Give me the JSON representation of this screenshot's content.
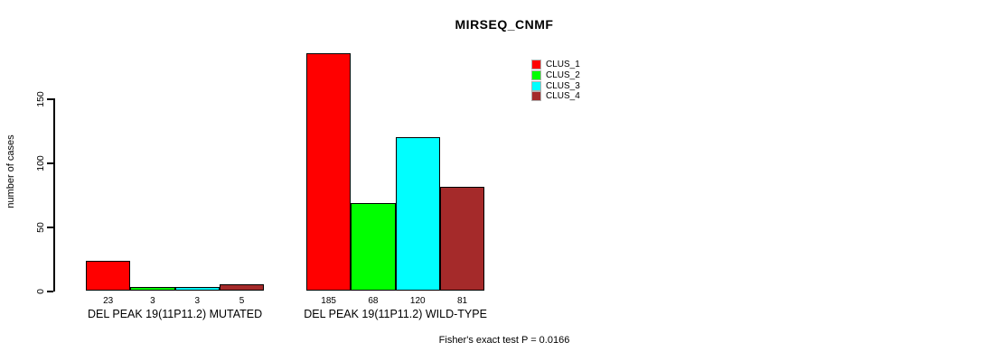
{
  "title": "MIRSEQ_CNMF",
  "annotation": "Fisher's exact test P = 0.0166",
  "chart_data": {
    "type": "bar",
    "title": "MIRSEQ_CNMF",
    "xlabel": "",
    "ylabel": "number of cases",
    "ylim": [
      0,
      190
    ],
    "yticks": [
      0,
      50,
      100,
      150
    ],
    "grid": false,
    "legend_position": "top-right",
    "show_values_under_bars": true,
    "categories": [
      "DEL PEAK 19(11P11.2) MUTATED",
      "DEL PEAK 19(11P11.2) WILD-TYPE"
    ],
    "series": [
      {
        "name": "CLUS_1",
        "color": "#ff0000",
        "values": [
          23,
          185
        ]
      },
      {
        "name": "CLUS_2",
        "color": "#00ff00",
        "values": [
          3,
          68
        ]
      },
      {
        "name": "CLUS_3",
        "color": "#00ffff",
        "values": [
          3,
          120
        ]
      },
      {
        "name": "CLUS_4",
        "color": "#a52a2a",
        "values": [
          5,
          81
        ]
      }
    ],
    "annotation": "Fisher's exact test P = 0.0166"
  }
}
